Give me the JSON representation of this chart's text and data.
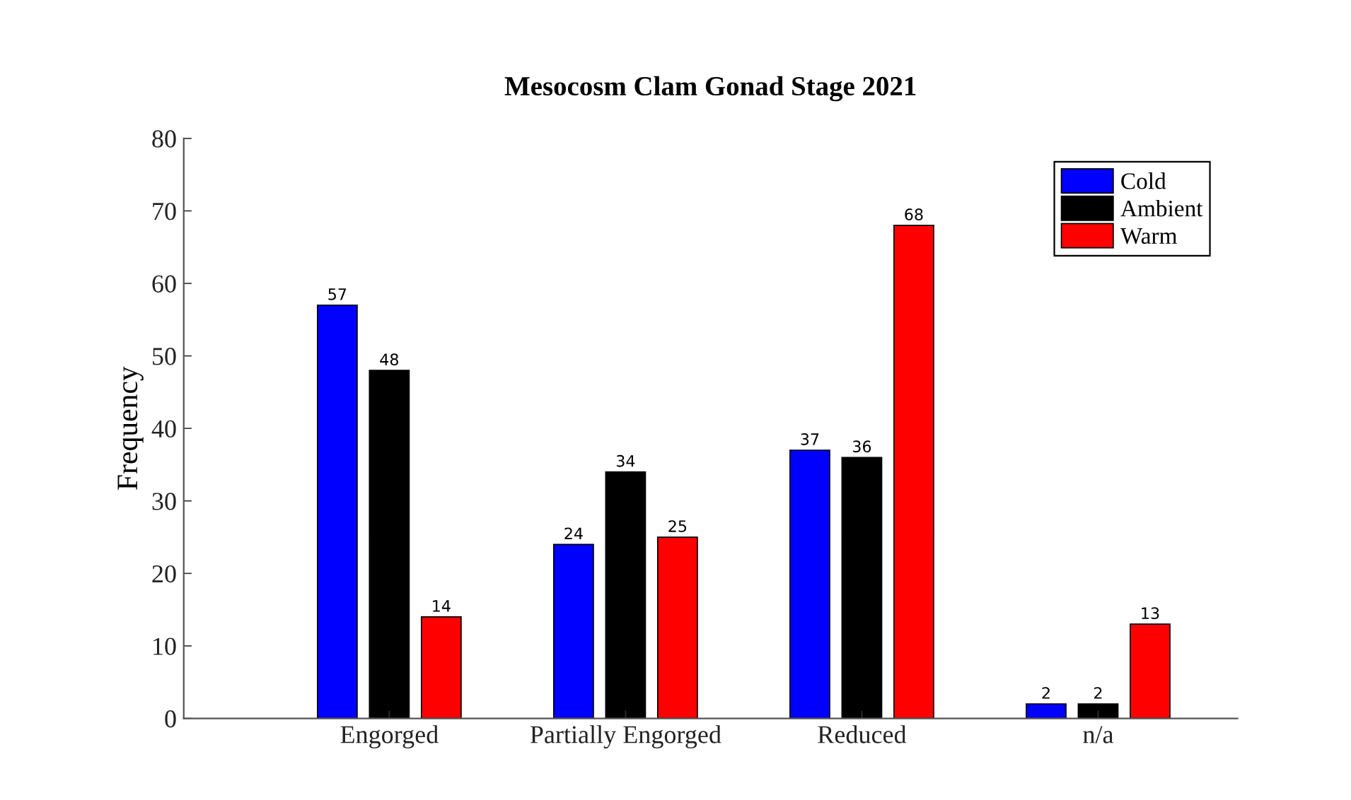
{
  "chart_data": {
    "type": "bar",
    "title": "Mesocosm Clam Gonad Stage 2021",
    "ylabel": "Frequency",
    "categories": [
      "Engorged",
      "Partially Engorged",
      "Reduced",
      "n/a"
    ],
    "series": [
      {
        "name": "Cold",
        "color": "#0000ff",
        "values": [
          57,
          24,
          37,
          2
        ]
      },
      {
        "name": "Ambient",
        "color": "#000000",
        "values": [
          48,
          34,
          36,
          2
        ]
      },
      {
        "name": "Warm",
        "color": "#ff0000",
        "values": [
          14,
          25,
          68,
          13
        ]
      }
    ],
    "ylim": [
      0,
      80
    ],
    "yticks": [
      0,
      10,
      20,
      30,
      40,
      50,
      60,
      70,
      80
    ],
    "data_labels": true,
    "legend": "top right",
    "grid": false
  }
}
